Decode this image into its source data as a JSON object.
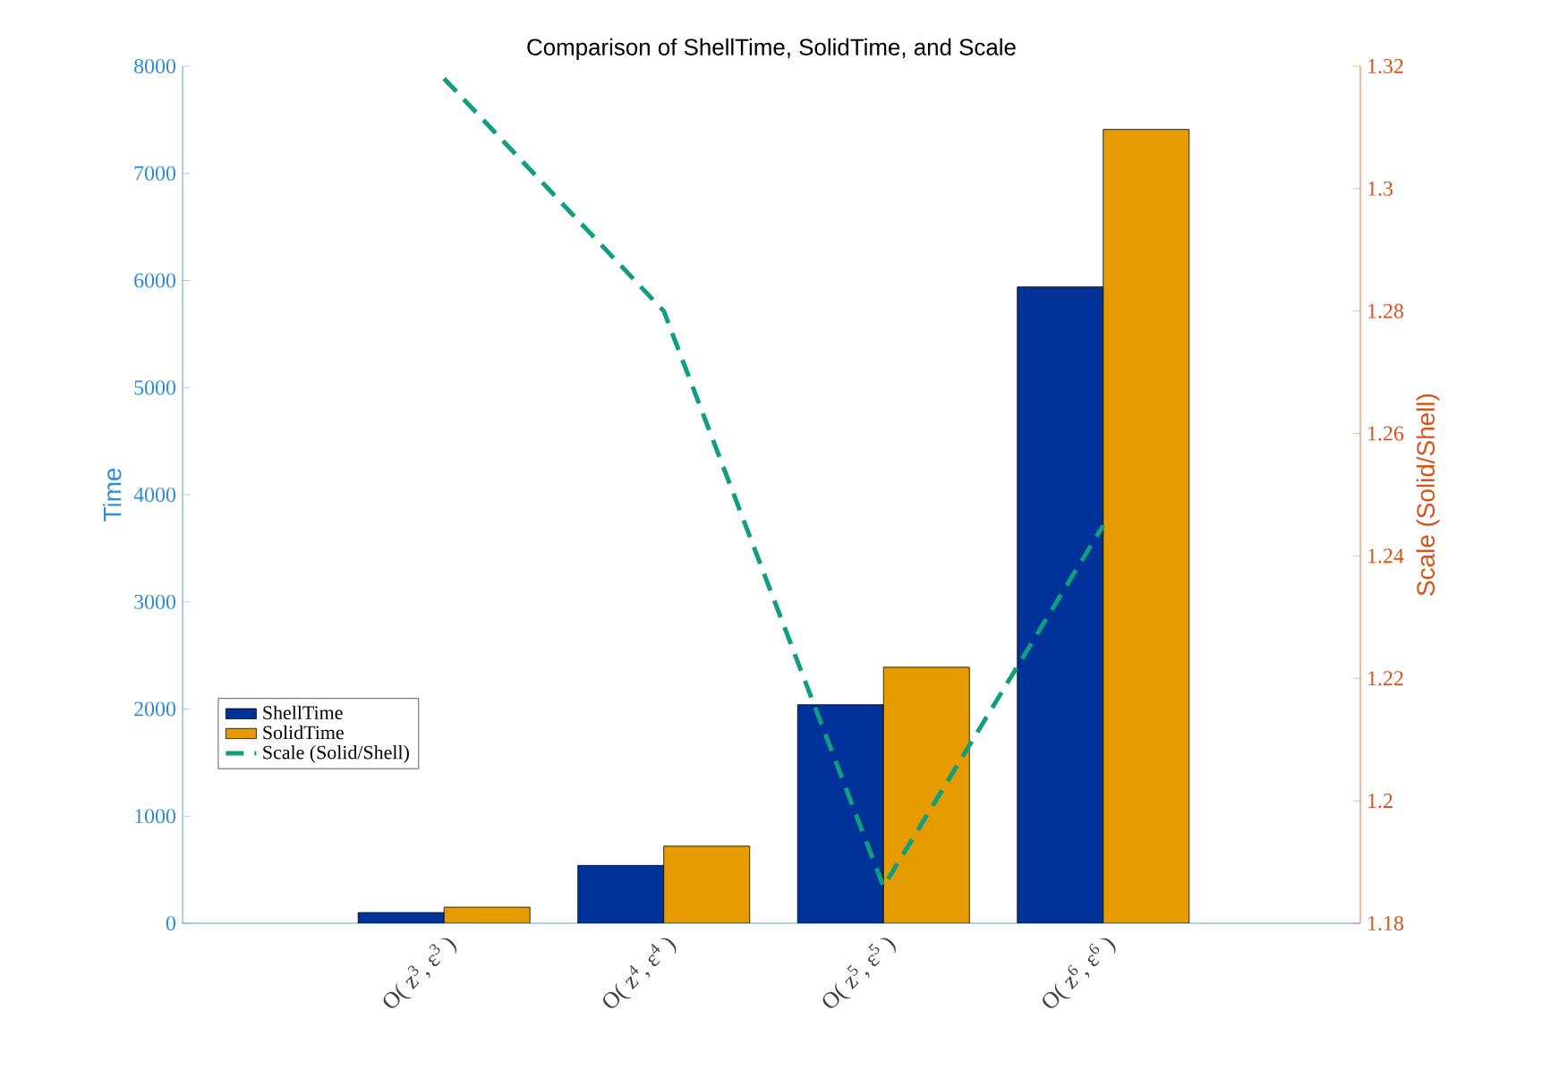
{
  "chart_data": {
    "type": "bar",
    "title": "Comparison of ShellTime, SolidTime, and Scale",
    "ylabel": "Time",
    "y2label": "Scale (Solid/Shell)",
    "categories": [
      "O( z$^{3}$, ε$^{3}$ )",
      "O( z$^{4}$, ε$^{4}$ )",
      "O( z$^{5}$, ε$^{5}$ )",
      "O( z$^{6}$, ε$^{6}$ )"
    ],
    "series": [
      {
        "name": "ShellTime",
        "color": "#003399",
        "values": [
          100,
          540,
          2040,
          5940
        ]
      },
      {
        "name": "SolidTime",
        "color": "#e69c00",
        "values": [
          150,
          720,
          2390,
          7410
        ]
      },
      {
        "name": "Scale (Solid/Shell)",
        "type": "line",
        "axis": "y2",
        "line_style": "dashed",
        "color": "#119e80",
        "values": [
          1.318,
          1.28,
          1.186,
          1.245
        ]
      }
    ],
    "ylim": [
      0,
      8000
    ],
    "yticks": [
      0,
      1000,
      2000,
      3000,
      4000,
      5000,
      6000,
      7000,
      8000
    ],
    "y2lim": [
      1.18,
      1.32
    ],
    "y2ticks": [
      1.18,
      1.2,
      1.22,
      1.24,
      1.26,
      1.28,
      1.3,
      1.32
    ],
    "legend": "bottom left",
    "grid": false
  }
}
